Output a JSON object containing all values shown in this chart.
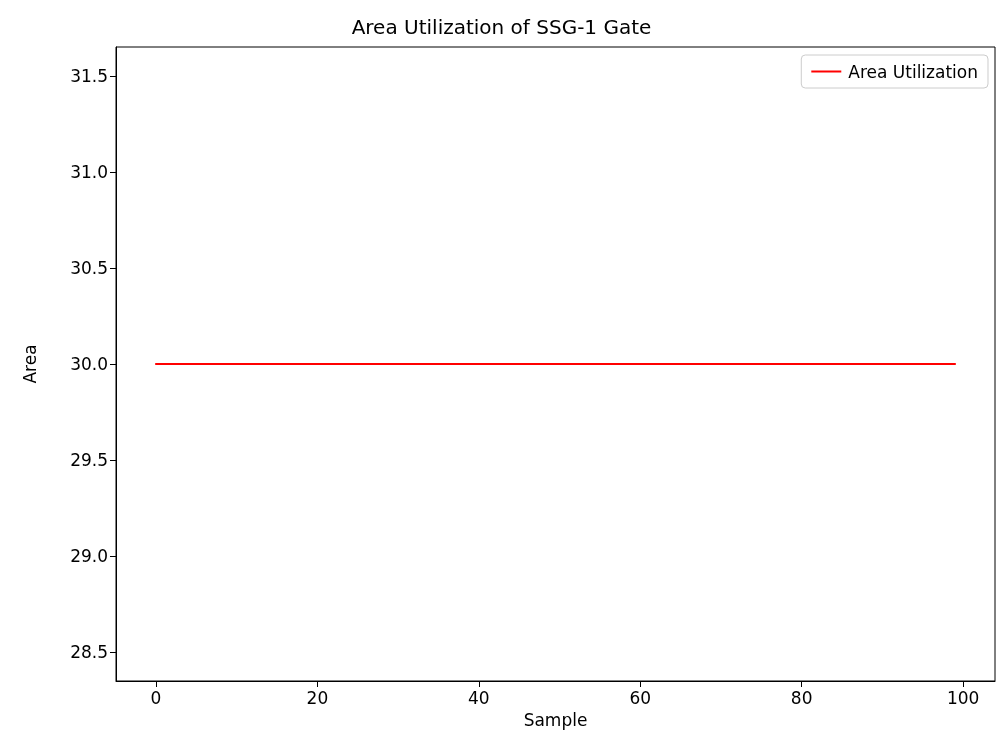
{
  "chart_data": {
    "type": "line",
    "title": "Area Utilization of SSG-1 Gate",
    "xlabel": "Sample",
    "ylabel": "Area",
    "series": [
      {
        "name": "Area Utilization",
        "color": "#ff0000",
        "x": [
          0,
          99
        ],
        "values": [
          30,
          30
        ]
      }
    ],
    "xlim": [
      -4.95,
      103.95
    ],
    "xticks": [
      0,
      20,
      40,
      60,
      80,
      100
    ],
    "ylim": [
      28.35,
      31.65
    ],
    "yticks": [
      28.5,
      {
        "value": 29,
        "label": "29.0"
      },
      29.5,
      {
        "value": 30,
        "label": "30.0"
      },
      30.5,
      {
        "value": 31,
        "label": "31.0"
      },
      31.5
    ],
    "grid": false,
    "legend": "top right",
    "marker": "none",
    "line_style": "solid"
  }
}
